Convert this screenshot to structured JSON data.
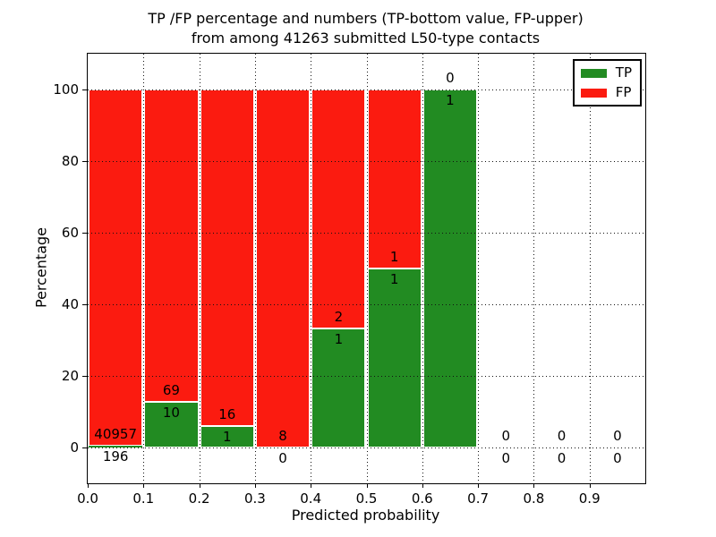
{
  "title": {
    "line1": "TP /FP percentage and numbers (TP-bottom value, FP-upper)",
    "line2": "from among 41263 submitted L50-type contacts"
  },
  "axes": {
    "xlabel": "Predicted probability",
    "ylabel": "Percentage",
    "xticks": [
      "0.0",
      "0.1",
      "0.2",
      "0.3",
      "0.4",
      "0.5",
      "0.6",
      "0.7",
      "0.8",
      "0.9"
    ],
    "yticks": [
      "0",
      "20",
      "40",
      "60",
      "80",
      "100"
    ],
    "xlim": [
      0.0,
      1.0
    ],
    "ylim": [
      -10,
      110
    ],
    "grid": "dotted"
  },
  "legend": {
    "position": "upper right",
    "items": [
      {
        "label": "TP",
        "color": "#228b22"
      },
      {
        "label": "FP",
        "color": "#fb1b10"
      }
    ]
  },
  "chart_data": {
    "type": "bar",
    "variant": "stacked-percentage",
    "title": "TP /FP percentage and numbers (TP-bottom value, FP-upper) from among 41263 submitted L50-type contacts",
    "xlabel": "Predicted probability",
    "ylabel": "Percentage",
    "total_contacts": 41263,
    "bin_width": 0.1,
    "categories": [
      "0.0-0.1",
      "0.1-0.2",
      "0.2-0.3",
      "0.3-0.4",
      "0.4-0.5",
      "0.5-0.6",
      "0.6-0.7",
      "0.7-0.8",
      "0.8-0.9",
      "0.9-1.0"
    ],
    "series": [
      {
        "name": "TP",
        "stack_position": "bottom",
        "color": "#228b22",
        "counts": [
          196,
          10,
          1,
          0,
          1,
          1,
          1,
          0,
          0,
          0
        ],
        "percent": [
          0.48,
          12.66,
          5.88,
          0.0,
          33.33,
          50.0,
          100.0,
          0,
          0,
          0
        ]
      },
      {
        "name": "FP",
        "stack_position": "top",
        "color": "#fb1b10",
        "counts": [
          40957,
          69,
          16,
          8,
          2,
          1,
          0,
          0,
          0,
          0
        ],
        "percent": [
          99.52,
          87.34,
          94.12,
          100.0,
          66.67,
          50.0,
          0.0,
          0,
          0,
          0
        ]
      }
    ],
    "ylim": [
      -10,
      110
    ],
    "yticks": [
      0,
      20,
      40,
      60,
      80,
      100
    ],
    "grid": "dotted",
    "legend_position": "upper right"
  }
}
